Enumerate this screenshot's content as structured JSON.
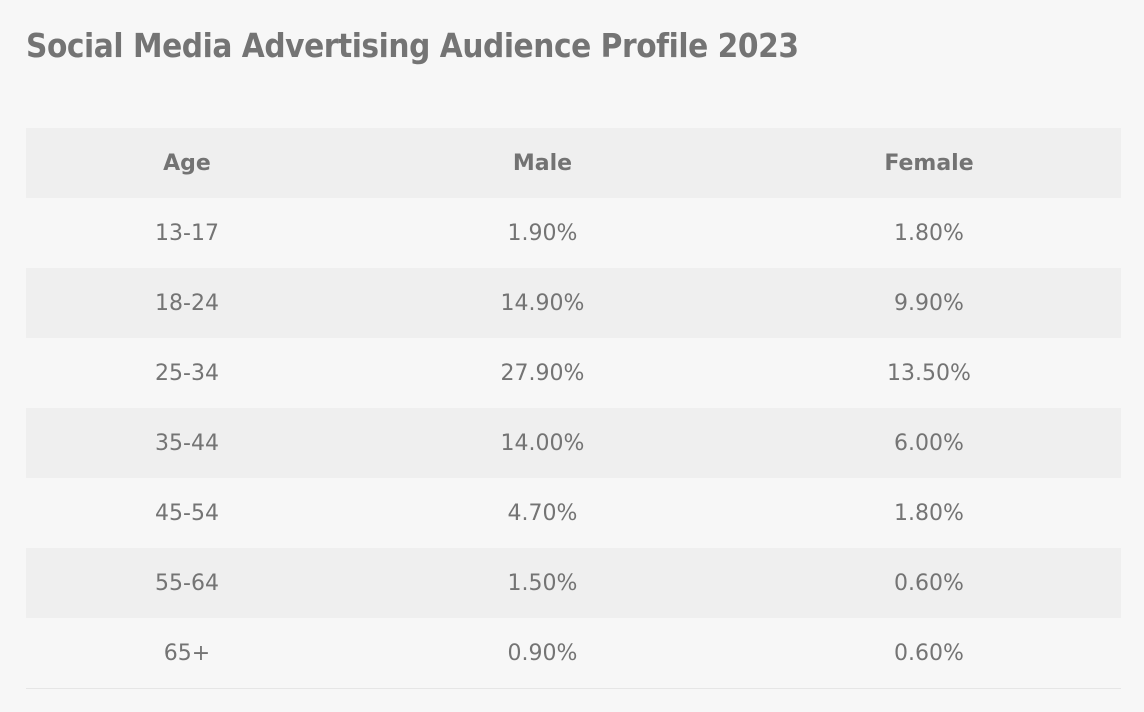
{
  "page": {
    "title": "Social Media Advertising Audience Profile 2023"
  },
  "table": {
    "headers": [
      "Age",
      "Male",
      "Female"
    ],
    "rows": [
      [
        "13-17",
        "1.90%",
        "1.80%"
      ],
      [
        "18-24",
        "14.90%",
        "9.90%"
      ],
      [
        "25-34",
        "27.90%",
        "13.50%"
      ],
      [
        "35-44",
        "14.00%",
        "6.00%"
      ],
      [
        "45-54",
        "4.70%",
        "1.80%"
      ],
      [
        "55-64",
        "1.50%",
        "0.60%"
      ],
      [
        "65+",
        "0.90%",
        "0.60%"
      ]
    ]
  },
  "colors": {
    "background": "#f7f7f7",
    "stripe": "#efefef",
    "text": "#747474"
  }
}
